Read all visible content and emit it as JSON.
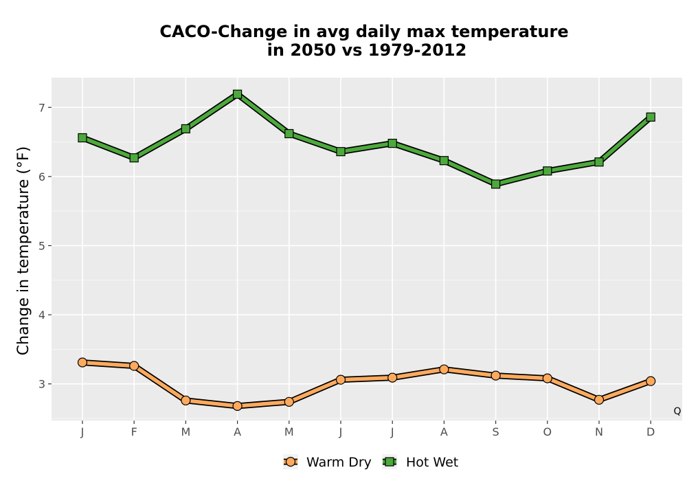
{
  "chart_data": {
    "type": "line",
    "title": [
      "CACO-Change in avg daily max temperature",
      "in 2050 vs 1979-2012"
    ],
    "xlabel": "",
    "ylabel": "Change in temperature (°F)",
    "categories": [
      "J",
      "F",
      "M",
      "A",
      "M",
      "J",
      "J",
      "A",
      "S",
      "O",
      "N",
      "D"
    ],
    "yticks": [
      3,
      4,
      5,
      6,
      7
    ],
    "ylim": [
      2.47,
      7.43
    ],
    "grid": true,
    "legend_position": "bottom",
    "corner_note": "Q",
    "series": [
      {
        "name": "Warm Dry",
        "marker": "circle",
        "color": "#FDAA5E",
        "values": [
          3.31,
          3.26,
          2.76,
          2.68,
          2.74,
          3.06,
          3.09,
          3.21,
          3.12,
          3.08,
          2.77,
          3.04
        ]
      },
      {
        "name": "Hot Wet",
        "marker": "square",
        "color": "#4DA93C",
        "values": [
          6.56,
          6.27,
          6.69,
          7.19,
          6.62,
          6.36,
          6.48,
          6.23,
          5.89,
          6.08,
          6.21,
          6.86
        ]
      }
    ]
  }
}
